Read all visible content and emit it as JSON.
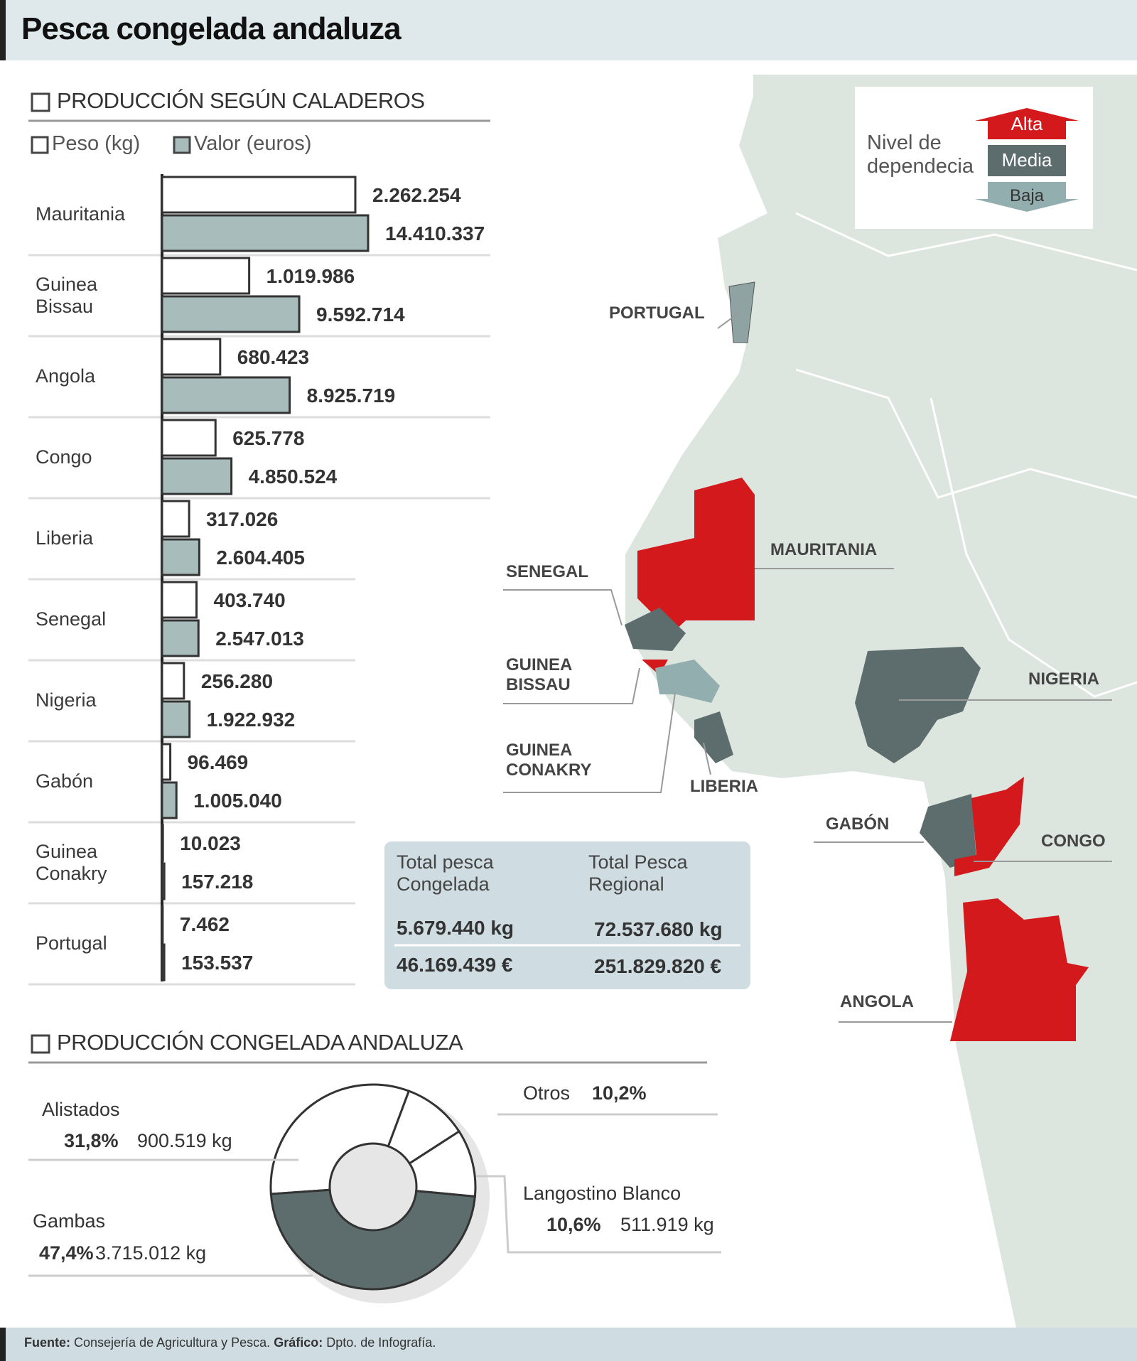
{
  "title": "Pesca congelada andaluza",
  "chart_data": [
    {
      "type": "bar",
      "orientation": "horizontal",
      "title": "PRODUCCIÓN SEGÚN CALADEROS",
      "categories": [
        "Mauritania",
        "Guinea Bissau",
        "Angola",
        "Congo",
        "Liberia",
        "Senegal",
        "Nigeria",
        "Gabón",
        "Guinea Conakry",
        "Portugal"
      ],
      "series": [
        {
          "name": "Peso (kg)",
          "color": "#ffffff",
          "values": [
            2262254,
            1019986,
            680423,
            625778,
            317026,
            403740,
            256280,
            96469,
            10023,
            7462
          ],
          "value_labels": [
            "2.262.254",
            "1.019.986",
            "680.423",
            "625.778",
            "317.026",
            "403.740",
            "256.280",
            "96.469",
            "10.023",
            "7.462"
          ]
        },
        {
          "name": "Valor (euros)",
          "color": "#a9bcbc",
          "values": [
            14410337,
            9592714,
            8925719,
            4850524,
            2604405,
            2547013,
            1922932,
            1005040,
            157218,
            153537
          ],
          "value_labels": [
            "14.410.337",
            "9.592.714",
            "8.925.719",
            "4.850.524",
            "2.604.405",
            "2.547.013",
            "1.922.932",
            "1.005.040",
            "157.218",
            "153.537"
          ]
        }
      ]
    },
    {
      "type": "donut",
      "title": "PRODUCCIÓN CONGELADA ANDALUZA",
      "categories": [
        "Alistados",
        "Otros",
        "Langostino Blanco",
        "Gambas"
      ],
      "values": [
        31.8,
        10.2,
        10.6,
        47.4
      ],
      "value_labels": [
        "31,8%",
        "10,2%",
        "10,6%",
        "47,4%"
      ],
      "kg_labels": [
        "900.519 kg",
        null,
        "511.919 kg",
        "3.715.012 kg"
      ],
      "colors": [
        "#ffffff",
        "#ffffff",
        "#ffffff",
        "#5d6d6e"
      ]
    }
  ],
  "totals": {
    "headers": [
      "Total pesca Congelada",
      "Total Pesca Regional"
    ],
    "rows": [
      [
        "5.679.440 kg",
        "72.537.680 kg"
      ],
      [
        "46.169.439 €",
        "251.829.820 €"
      ]
    ]
  },
  "map": {
    "legend_title": "Nivel de dependecia",
    "levels": [
      "Alta",
      "Media",
      "Baja"
    ],
    "countries": [
      "PORTUGAL",
      "MAURITANIA",
      "SENEGAL",
      "GUINEA BISSAU",
      "GUINEA CONAKRY",
      "LIBERIA",
      "NIGERIA",
      "GABÓN",
      "CONGO",
      "ANGOLA"
    ]
  },
  "footer": {
    "source_label": "Fuente:",
    "source": "Consejería de Agricultura y Pesca.",
    "graphic_label": "Gráfico:",
    "graphic": "Dpto. de Infografía."
  }
}
